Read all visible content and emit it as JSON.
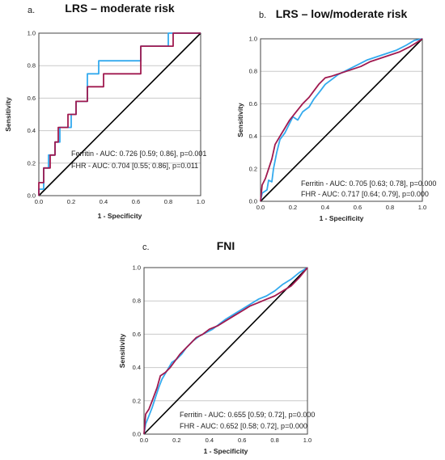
{
  "chart_data": [
    {
      "type": "line",
      "panel": "a.",
      "title": "LRS – moderate risk",
      "xlabel": "1 - Specificity",
      "ylabel": "Sensitivity",
      "xlim": [
        0,
        1
      ],
      "ylim": [
        0,
        1
      ],
      "xticks": [
        "0.0",
        "0.2",
        "0.4",
        "0.6",
        "0.8",
        "1.0"
      ],
      "yticks": [
        "0.0",
        "0.2",
        "0.4",
        "0.6",
        "0.8",
        "1.0"
      ],
      "grid": "horizontal",
      "annotations": [
        "Ferritin - AUC: 0.726 [0.59; 0.86], p=0.001",
        "FHR - AUC: 0.704 [0.55; 0.86], p=0.011"
      ],
      "colors": {
        "ferritin": "#33aaee",
        "fhr": "#a0194f",
        "reference": "#000000"
      },
      "series": [
        {
          "id": "ferritin",
          "points": [
            [
              0,
              0
            ],
            [
              0,
              0.04
            ],
            [
              0.03,
              0.04
            ],
            [
              0.03,
              0.17
            ],
            [
              0.06,
              0.17
            ],
            [
              0.06,
              0.25
            ],
            [
              0.1,
              0.25
            ],
            [
              0.1,
              0.33
            ],
            [
              0.13,
              0.33
            ],
            [
              0.13,
              0.42
            ],
            [
              0.2,
              0.42
            ],
            [
              0.2,
              0.5
            ],
            [
              0.23,
              0.5
            ],
            [
              0.23,
              0.58
            ],
            [
              0.3,
              0.58
            ],
            [
              0.3,
              0.75
            ],
            [
              0.37,
              0.75
            ],
            [
              0.37,
              0.83
            ],
            [
              0.63,
              0.83
            ],
            [
              0.63,
              0.92
            ],
            [
              0.8,
              0.92
            ],
            [
              0.8,
              1.0
            ],
            [
              1.0,
              1.0
            ]
          ]
        },
        {
          "id": "fhr",
          "points": [
            [
              0,
              0
            ],
            [
              0,
              0.08
            ],
            [
              0.03,
              0.08
            ],
            [
              0.03,
              0.17
            ],
            [
              0.07,
              0.17
            ],
            [
              0.07,
              0.25
            ],
            [
              0.1,
              0.25
            ],
            [
              0.1,
              0.33
            ],
            [
              0.12,
              0.33
            ],
            [
              0.12,
              0.42
            ],
            [
              0.18,
              0.42
            ],
            [
              0.18,
              0.5
            ],
            [
              0.23,
              0.5
            ],
            [
              0.23,
              0.58
            ],
            [
              0.3,
              0.58
            ],
            [
              0.3,
              0.67
            ],
            [
              0.4,
              0.67
            ],
            [
              0.4,
              0.75
            ],
            [
              0.63,
              0.75
            ],
            [
              0.63,
              0.92
            ],
            [
              0.83,
              0.92
            ],
            [
              0.83,
              1.0
            ],
            [
              1.0,
              1.0
            ]
          ]
        }
      ]
    },
    {
      "type": "line",
      "panel": "b.",
      "title": "LRS – low/moderate risk",
      "xlabel": "1 - Specificity",
      "ylabel": "Sensitivity",
      "xlim": [
        0,
        1
      ],
      "ylim": [
        0,
        1
      ],
      "xticks": [
        "0.0",
        "0.2",
        "0.4",
        "0.6",
        "0.8",
        "1.0"
      ],
      "yticks": [
        "0.0",
        "0.2",
        "0.4",
        "0.6",
        "0.8",
        "1.0"
      ],
      "grid": "horizontal",
      "annotations": [
        "Ferritin - AUC: 0.705 [0.63; 0.78], p=0.000",
        "FHR - AUC: 0.717 [0.64; 0.79], p=0.000"
      ],
      "colors": {
        "ferritin": "#33aaee",
        "fhr": "#a0194f",
        "reference": "#000000"
      },
      "series": [
        {
          "id": "ferritin",
          "points": [
            [
              0,
              0
            ],
            [
              0.01,
              0.05
            ],
            [
              0.04,
              0.07
            ],
            [
              0.05,
              0.13
            ],
            [
              0.07,
              0.12
            ],
            [
              0.08,
              0.2
            ],
            [
              0.1,
              0.3
            ],
            [
              0.12,
              0.38
            ],
            [
              0.15,
              0.42
            ],
            [
              0.18,
              0.48
            ],
            [
              0.2,
              0.52
            ],
            [
              0.23,
              0.5
            ],
            [
              0.26,
              0.55
            ],
            [
              0.3,
              0.58
            ],
            [
              0.33,
              0.63
            ],
            [
              0.37,
              0.68
            ],
            [
              0.4,
              0.72
            ],
            [
              0.44,
              0.75
            ],
            [
              0.48,
              0.78
            ],
            [
              0.52,
              0.8
            ],
            [
              0.56,
              0.82
            ],
            [
              0.6,
              0.84
            ],
            [
              0.66,
              0.87
            ],
            [
              0.72,
              0.89
            ],
            [
              0.78,
              0.91
            ],
            [
              0.84,
              0.93
            ],
            [
              0.9,
              0.96
            ],
            [
              0.95,
              0.99
            ],
            [
              1.0,
              1.0
            ]
          ]
        },
        {
          "id": "fhr",
          "points": [
            [
              0,
              0
            ],
            [
              0.01,
              0.1
            ],
            [
              0.03,
              0.14
            ],
            [
              0.05,
              0.2
            ],
            [
              0.07,
              0.26
            ],
            [
              0.09,
              0.35
            ],
            [
              0.12,
              0.4
            ],
            [
              0.15,
              0.45
            ],
            [
              0.18,
              0.5
            ],
            [
              0.22,
              0.55
            ],
            [
              0.26,
              0.6
            ],
            [
              0.3,
              0.64
            ],
            [
              0.33,
              0.68
            ],
            [
              0.36,
              0.72
            ],
            [
              0.4,
              0.76
            ],
            [
              0.44,
              0.77
            ],
            [
              0.5,
              0.79
            ],
            [
              0.56,
              0.81
            ],
            [
              0.62,
              0.83
            ],
            [
              0.68,
              0.86
            ],
            [
              0.74,
              0.88
            ],
            [
              0.8,
              0.9
            ],
            [
              0.86,
              0.92
            ],
            [
              0.92,
              0.95
            ],
            [
              0.97,
              0.98
            ],
            [
              1.0,
              1.0
            ]
          ]
        }
      ]
    },
    {
      "type": "line",
      "panel": "c.",
      "title": "FNI",
      "xlabel": "1 - Specificity",
      "ylabel": "Sensitivity",
      "xlim": [
        0,
        1
      ],
      "ylim": [
        0,
        1
      ],
      "xticks": [
        "0.0",
        "0.2",
        "0.4",
        "0.6",
        "0.8",
        "1.0"
      ],
      "yticks": [
        "0.0",
        "0.2",
        "0.4",
        "0.6",
        "0.8",
        "1.0"
      ],
      "grid": "horizontal",
      "annotations": [
        "Ferritin - AUC: 0.655 [0.59; 0.72], p=0.000",
        "FHR - AUC: 0.652 [0.58; 0.72], p=0.000"
      ],
      "colors": {
        "ferritin": "#33aaee",
        "fhr": "#a0194f",
        "reference": "#000000"
      },
      "series": [
        {
          "id": "ferritin",
          "points": [
            [
              0,
              0
            ],
            [
              0.01,
              0.06
            ],
            [
              0.03,
              0.11
            ],
            [
              0.05,
              0.16
            ],
            [
              0.07,
              0.22
            ],
            [
              0.09,
              0.28
            ],
            [
              0.11,
              0.33
            ],
            [
              0.14,
              0.38
            ],
            [
              0.17,
              0.43
            ],
            [
              0.2,
              0.45
            ],
            [
              0.23,
              0.48
            ],
            [
              0.26,
              0.52
            ],
            [
              0.3,
              0.56
            ],
            [
              0.34,
              0.59
            ],
            [
              0.38,
              0.61
            ],
            [
              0.42,
              0.63
            ],
            [
              0.46,
              0.66
            ],
            [
              0.5,
              0.69
            ],
            [
              0.55,
              0.72
            ],
            [
              0.6,
              0.75
            ],
            [
              0.65,
              0.78
            ],
            [
              0.7,
              0.81
            ],
            [
              0.75,
              0.83
            ],
            [
              0.8,
              0.86
            ],
            [
              0.85,
              0.9
            ],
            [
              0.9,
              0.93
            ],
            [
              0.95,
              0.97
            ],
            [
              1.0,
              1.0
            ]
          ]
        },
        {
          "id": "fhr",
          "points": [
            [
              0,
              0
            ],
            [
              0.01,
              0.12
            ],
            [
              0.03,
              0.15
            ],
            [
              0.05,
              0.2
            ],
            [
              0.08,
              0.28
            ],
            [
              0.1,
              0.35
            ],
            [
              0.13,
              0.37
            ],
            [
              0.16,
              0.4
            ],
            [
              0.19,
              0.44
            ],
            [
              0.22,
              0.48
            ],
            [
              0.25,
              0.51
            ],
            [
              0.28,
              0.54
            ],
            [
              0.32,
              0.58
            ],
            [
              0.36,
              0.6
            ],
            [
              0.4,
              0.63
            ],
            [
              0.45,
              0.65
            ],
            [
              0.5,
              0.68
            ],
            [
              0.55,
              0.71
            ],
            [
              0.6,
              0.74
            ],
            [
              0.65,
              0.77
            ],
            [
              0.7,
              0.79
            ],
            [
              0.75,
              0.81
            ],
            [
              0.8,
              0.83
            ],
            [
              0.85,
              0.86
            ],
            [
              0.9,
              0.89
            ],
            [
              0.95,
              0.94
            ],
            [
              1.0,
              1.0
            ]
          ]
        }
      ]
    }
  ]
}
